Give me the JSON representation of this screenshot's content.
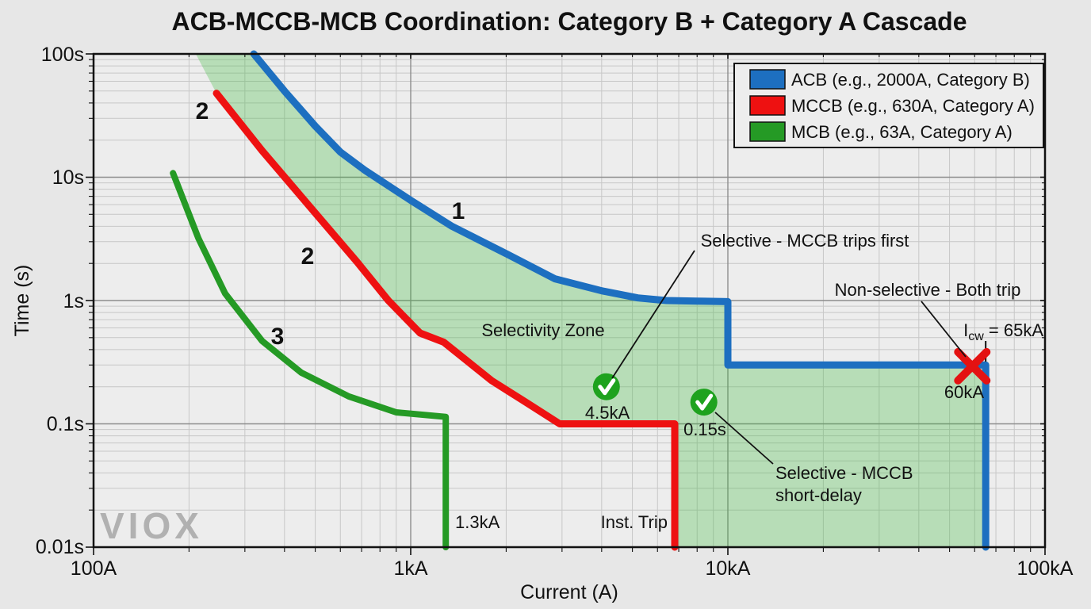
{
  "title": "ACB-MCCB-MCB Coordination: Category B + Category A Cascade",
  "watermark": "VIOX",
  "axes": {
    "xlabel": "Current (A)",
    "ylabel": "Time (s)",
    "x_tick_labels": [
      "100A",
      "1kA",
      "10kA",
      "100kA"
    ],
    "y_tick_labels": [
      "100s",
      "10s",
      "1s",
      "0.1s",
      "0.01s"
    ]
  },
  "legend": {
    "items": [
      {
        "label": "ACB (e.g., 2000A, Category B)",
        "color": "#1d6fc0"
      },
      {
        "label": "MCCB (e.g., 630A, Category A)",
        "color": "#ee1111"
      },
      {
        "label": "MCB (e.g., 63A, Category A)",
        "color": "#259a25"
      }
    ]
  },
  "annotations": {
    "selectivity_zone": "Selectivity Zone",
    "selective_trips_first": "Selective - MCCB trips first",
    "non_selective": "Non-selective - Both trip",
    "icw_prefix": "I",
    "icw_sub": "cw",
    "icw_value": " = 65kA",
    "kA60": "60kA",
    "kA45": "4.5kA",
    "s015": "0.15s",
    "selective_short_line1": "Selective - MCCB",
    "selective_short_line2": "short-delay",
    "kA13": "1.3kA",
    "inst_trip": "Inst. Trip",
    "curve1": "1",
    "curve2a": "2",
    "curve2b": "2",
    "curve3": "3"
  },
  "chart_data": {
    "type": "line",
    "title": "ACB-MCCB-MCB Coordination: Category B + Category A Cascade",
    "xlabel": "Current (A)",
    "ylabel": "Time (s)",
    "x_scale": "log",
    "y_scale": "log",
    "x_range": [
      100,
      100000
    ],
    "y_range": [
      0.01,
      100
    ],
    "grid": true,
    "legend_position": "upper right",
    "series": [
      {
        "id": "acb",
        "name": "ACB (e.g., 2000A, Category B)",
        "color": "#1d6fc0",
        "width": 9,
        "points": [
          [
            320,
            100
          ],
          [
            400,
            50
          ],
          [
            500,
            26
          ],
          [
            600,
            16
          ],
          [
            720,
            11.3
          ],
          [
            1000,
            6.5
          ],
          [
            1350,
            4.0
          ],
          [
            2000,
            2.4
          ],
          [
            2850,
            1.5
          ],
          [
            4000,
            1.2
          ],
          [
            5200,
            1.05
          ],
          [
            6400,
            1.0
          ],
          [
            8000,
            0.99
          ],
          [
            10000,
            0.98
          ],
          [
            10000,
            0.3
          ],
          [
            65000,
            0.3
          ],
          [
            65000,
            0.01
          ]
        ]
      },
      {
        "id": "mccb",
        "name": "MCCB (e.g., 630A, Category A)",
        "color": "#ee1111",
        "width": 9,
        "points": [
          [
            244,
            48
          ],
          [
            340,
            16.4
          ],
          [
            480,
            5.8
          ],
          [
            676,
            2.07
          ],
          [
            850,
            1.0
          ],
          [
            1070,
            0.545
          ],
          [
            1270,
            0.46
          ],
          [
            1800,
            0.224
          ],
          [
            2260,
            0.155
          ],
          [
            2950,
            0.1
          ],
          [
            6800,
            0.1
          ],
          [
            6800,
            0.01
          ]
        ]
      },
      {
        "id": "mcb",
        "name": "MCB (e.g., 63A, Category A)",
        "color": "#259a25",
        "width": 8,
        "points": [
          [
            178,
            10.8
          ],
          [
            214,
            3.2
          ],
          [
            260,
            1.14
          ],
          [
            340,
            0.47
          ],
          [
            452,
            0.26
          ],
          [
            638,
            0.167
          ],
          [
            900,
            0.124
          ],
          [
            1290,
            0.114
          ],
          [
            1290,
            0.01
          ]
        ]
      }
    ],
    "selectivity_zone": {
      "fill": "#3db83d",
      "opacity": 0.3,
      "polygon": [
        [
          210,
          100
        ],
        [
          244,
          48
        ],
        [
          340,
          16.4
        ],
        [
          480,
          5.8
        ],
        [
          676,
          2.07
        ],
        [
          850,
          1.0
        ],
        [
          1070,
          0.545
        ],
        [
          1270,
          0.46
        ],
        [
          1800,
          0.224
        ],
        [
          2260,
          0.155
        ],
        [
          2950,
          0.1
        ],
        [
          6800,
          0.1
        ],
        [
          6800,
          0.01
        ],
        [
          65000,
          0.01
        ],
        [
          65000,
          0.3
        ],
        [
          10000,
          0.3
        ],
        [
          10000,
          0.98
        ],
        [
          8000,
          0.99
        ],
        [
          6400,
          1.0
        ],
        [
          5200,
          1.05
        ],
        [
          4000,
          1.2
        ],
        [
          2850,
          1.5
        ],
        [
          2000,
          2.4
        ],
        [
          1350,
          4.0
        ],
        [
          1000,
          6.5
        ],
        [
          720,
          11.3
        ],
        [
          600,
          16
        ],
        [
          500,
          26
        ],
        [
          400,
          50
        ],
        [
          320,
          100
        ]
      ],
      "label": "Selectivity Zone"
    },
    "markers": [
      {
        "type": "check",
        "x": 4140,
        "y": 0.2,
        "color": "#1ea21e"
      },
      {
        "type": "check",
        "x": 8400,
        "y": 0.15,
        "color": "#1ea21e"
      },
      {
        "type": "cross",
        "x": 59000,
        "y": 0.293,
        "color": "#e41212"
      }
    ],
    "icw_tick": {
      "x": 65000
    }
  }
}
